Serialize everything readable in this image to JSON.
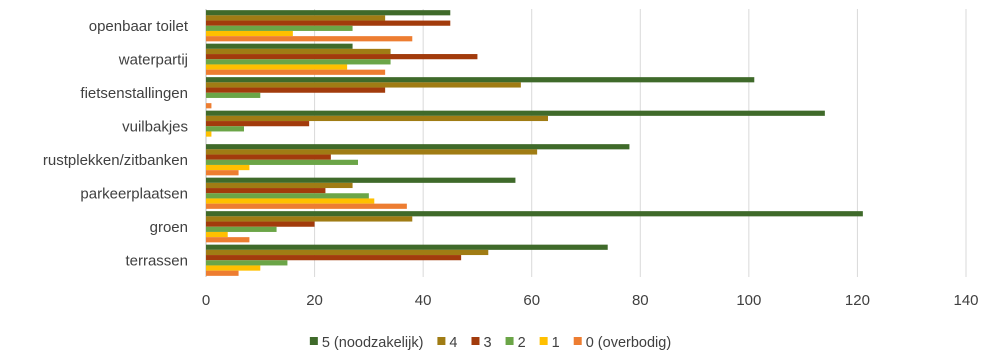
{
  "chart_data": {
    "type": "bar",
    "orientation": "horizontal",
    "categories": [
      "openbaar toilet",
      "waterpartij",
      "fietsenstallingen",
      "vuilbakjes",
      "rustplekken/zitbanken",
      "parkeerplaatsen",
      "groen",
      "terrassen"
    ],
    "series": [
      {
        "name": "5 (noodzakelijk)",
        "color": "#3f6a2a",
        "values": [
          45,
          27,
          101,
          114,
          78,
          57,
          121,
          74
        ]
      },
      {
        "name": "4",
        "color": "#a07c14",
        "values": [
          33,
          34,
          58,
          63,
          61,
          27,
          38,
          52
        ]
      },
      {
        "name": "3",
        "color": "#a23b0c",
        "values": [
          45,
          50,
          33,
          19,
          23,
          22,
          20,
          47
        ]
      },
      {
        "name": "2",
        "color": "#6ba547",
        "values": [
          27,
          34,
          10,
          7,
          28,
          30,
          13,
          15
        ]
      },
      {
        "name": "1",
        "color": "#ffc000",
        "values": [
          16,
          26,
          0,
          1,
          8,
          31,
          4,
          10
        ]
      },
      {
        "name": "0 (overbodig)",
        "color": "#ed7d31",
        "values": [
          38,
          33,
          1,
          0,
          6,
          37,
          8,
          6
        ]
      }
    ],
    "xlim": [
      0,
      140
    ],
    "xticks": [
      0,
      20,
      40,
      60,
      80,
      100,
      120,
      140
    ],
    "grid": true,
    "legend": "bottom"
  }
}
